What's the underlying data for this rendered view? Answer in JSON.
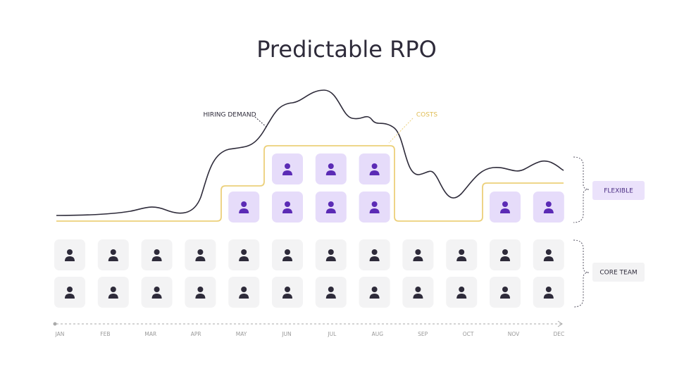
{
  "title": "Predictable RPO",
  "labels": {
    "hiring_demand": "HIRING DEMAND",
    "costs": "COSTS",
    "flexible": "FLEXIBLE",
    "core_team": "CORE TEAM"
  },
  "months": [
    "JAN",
    "FEB",
    "MAR",
    "APR",
    "MAY",
    "JUN",
    "JUL",
    "AUG",
    "SEP",
    "OCT",
    "NOV",
    "DEC"
  ]
}
